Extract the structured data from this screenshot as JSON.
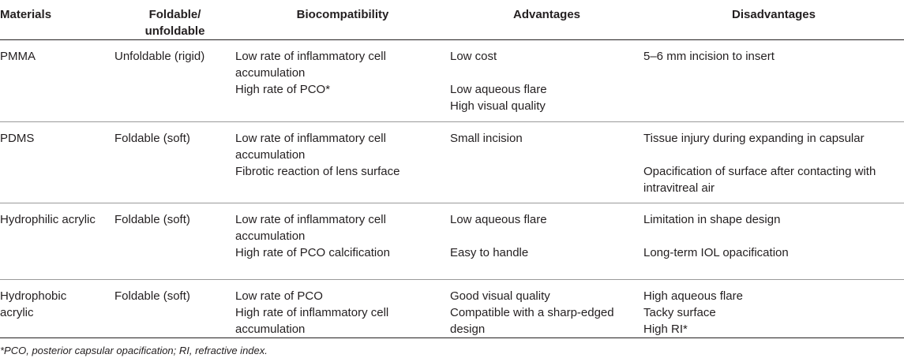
{
  "headers": {
    "materials": "Materials",
    "foldable_line1": "Foldable/",
    "foldable_line2": "unfoldable",
    "biocompatibility": "Biocompatibility",
    "advantages": "Advantages",
    "disadvantages": "Disadvantages"
  },
  "rows": [
    {
      "material": [
        "PMMA"
      ],
      "foldable": "Unfoldable (rigid)",
      "bio": [
        "Low rate of inflammatory cell",
        "accumulation",
        "High rate of PCO*"
      ],
      "adv": [
        "Low cost",
        "",
        "Low aqueous flare",
        "High visual quality"
      ],
      "dis": [
        "5–6 mm incision to insert"
      ]
    },
    {
      "material": [
        "PDMS"
      ],
      "foldable": "Foldable (soft)",
      "bio": [
        "Low rate of inflammatory cell",
        "accumulation",
        "Fibrotic reaction of lens surface"
      ],
      "adv": [
        "Small incision"
      ],
      "dis": [
        "Tissue injury during expanding in capsular",
        "",
        "Opacification of surface after contacting with",
        "intravitreal air"
      ]
    },
    {
      "material": [
        "Hydrophilic acrylic"
      ],
      "foldable": "Foldable (soft)",
      "bio": [
        "Low rate of inflammatory cell",
        "accumulation",
        "High rate of PCO calcification"
      ],
      "adv": [
        "Low aqueous flare",
        "",
        "Easy to handle"
      ],
      "dis": [
        "Limitation in shape design",
        "",
        "Long-term IOL opacification"
      ]
    },
    {
      "material": [
        "Hydrophobic",
        "acrylic"
      ],
      "foldable": "Foldable (soft)",
      "bio": [
        "Low rate of PCO",
        "High rate of inflammatory cell",
        "accumulation"
      ],
      "adv": [
        "Good visual quality",
        "Compatible with a sharp-edged",
        "design"
      ],
      "dis": [
        "High aqueous flare",
        "Tacky surface",
        "High RI*"
      ]
    }
  ],
  "footnote": "*PCO, posterior capsular opacification; RI, refractive index."
}
